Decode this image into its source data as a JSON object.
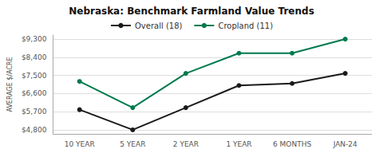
{
  "chart_data": {
    "type": "line",
    "title": "Nebraska: Benchmark Farmland Value Trends",
    "ylabel": "AVERAGE $/ACRE",
    "categories": [
      "10 YEAR",
      "5 YEAR",
      "2 YEAR",
      "1 YEAR",
      "6 MONTHS",
      "JAN-24"
    ],
    "series": [
      {
        "name": "Overall (18)",
        "color": "#1a1a1a",
        "marker": "circle",
        "values": [
          5800,
          4800,
          5900,
          7000,
          7100,
          7600
        ]
      },
      {
        "name": "Cropland (11)",
        "color": "#007a4d",
        "marker": "circle",
        "values": [
          7200,
          5900,
          7600,
          8600,
          8600,
          9300
        ]
      }
    ],
    "ylim": [
      4600,
      9500
    ],
    "yticks": [
      {
        "value": 4800,
        "label": "$4,800"
      },
      {
        "value": 5700,
        "label": "$5,700"
      },
      {
        "value": 6600,
        "label": "$6,600"
      },
      {
        "value": 7500,
        "label": "$7,500"
      },
      {
        "value": 8400,
        "label": "$8,400"
      },
      {
        "value": 9300,
        "label": "$9,300"
      }
    ],
    "grid": true,
    "legend": "top"
  }
}
